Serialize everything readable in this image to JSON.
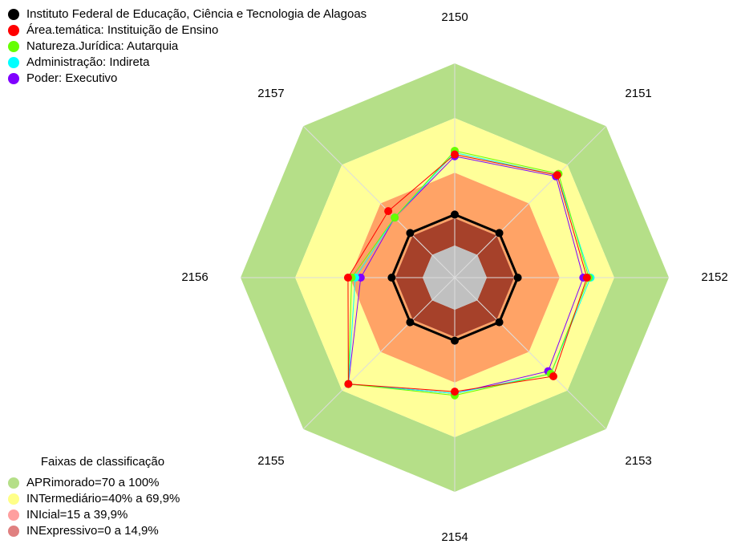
{
  "chart_data": {
    "type": "radar",
    "categories": [
      "2150",
      "2151",
      "2152",
      "2153",
      "2154",
      "2155",
      "2156",
      "2157"
    ],
    "rlim": [
      0,
      100
    ],
    "series": [
      {
        "name": "Instituto Federal de Educação, Ciência e Tecnologia de Alagoas",
        "color": "#000000",
        "values": [
          17,
          17,
          17,
          17,
          17,
          17,
          17,
          17
        ]
      },
      {
        "name": "Área.temática: Instituição de Ensino",
        "color": "#ff0000",
        "values": [
          50,
          62,
          55,
          59,
          45,
          65,
          41,
          34
        ]
      },
      {
        "name": "Natureza.Jurídica: Autarquia",
        "color": "#66ff00",
        "values": [
          52,
          63,
          56,
          57,
          47,
          65,
          39,
          29
        ]
      },
      {
        "name": "Administração: Indireta",
        "color": "#00ffff",
        "values": [
          51,
          62,
          57,
          57,
          46,
          65,
          37,
          29
        ]
      },
      {
        "name": "Poder: Executivo",
        "color": "#8000ff",
        "values": [
          49,
          61,
          53,
          55,
          46,
          65,
          34,
          29
        ]
      }
    ],
    "bands_title": "Faixas de classificação",
    "bands": [
      {
        "label": "APRimorado=70 a 100%",
        "from": 70,
        "to": 100,
        "color": "#b5df88",
        "legend_color": "#b5df88"
      },
      {
        "label": "INTermediário=40% a 69,9%",
        "from": 40,
        "to": 70,
        "color": "#ffff99",
        "legend_color": "#ffff88"
      },
      {
        "label": "INIcial=15 a 39,9%",
        "from": 15,
        "to": 40,
        "color": "#ffa366",
        "legend_color": "#ff9f9f"
      },
      {
        "label": "INExpressivo=0 a 14,9%",
        "from": 0,
        "to": 15,
        "color": "#a6412a",
        "legend_color": "#e08080"
      }
    ],
    "center_color": "#c0c0c0"
  }
}
